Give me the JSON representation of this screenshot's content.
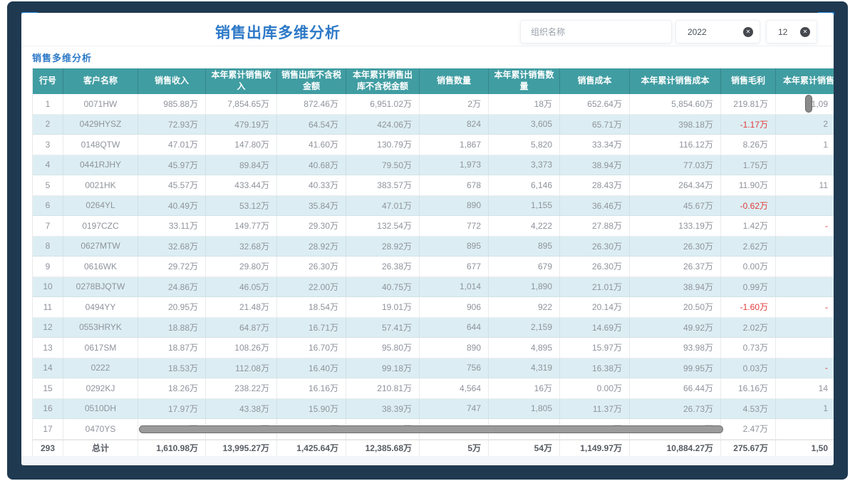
{
  "header": {
    "title": "销售出库多维分析"
  },
  "filters": {
    "org_placeholder": "组织名称",
    "year_value": "2022",
    "month_value": "12",
    "clear_icon": "✕"
  },
  "section": {
    "title": "销售多维分析"
  },
  "table": {
    "columns": [
      "行号",
      "客户名称",
      "销售收入",
      "本年累计销售收入",
      "销售出库不含税金额",
      "本年累计销售出库不含税金额",
      "销售数量",
      "本年累计销售数量",
      "销售成本",
      "本年累计销售成本",
      "销售毛利",
      "本年累计销售毛利"
    ],
    "rows": [
      [
        "1",
        "0071HW",
        "985.88万",
        "7,854.65万",
        "872.46万",
        "6,951.02万",
        "2万",
        "18万",
        "652.64万",
        "5,854.60万",
        "219.81万",
        "1,09"
      ],
      [
        "2",
        "0429HYSZ",
        "72.93万",
        "479.19万",
        "64.54万",
        "424.06万",
        "824",
        "3,605",
        "65.71万",
        "398.18万",
        "-1.17万",
        "2"
      ],
      [
        "3",
        "0148QTW",
        "47.01万",
        "147.80万",
        "41.60万",
        "130.79万",
        "1,867",
        "5,820",
        "33.34万",
        "116.12万",
        "8.26万",
        "1"
      ],
      [
        "4",
        "0441RJHY",
        "45.97万",
        "89.84万",
        "40.68万",
        "79.50万",
        "1,973",
        "3,373",
        "38.94万",
        "77.03万",
        "1.75万",
        ""
      ],
      [
        "5",
        "0021HK",
        "45.57万",
        "433.44万",
        "40.33万",
        "383.57万",
        "678",
        "6,146",
        "28.43万",
        "264.34万",
        "11.90万",
        "11"
      ],
      [
        "6",
        "0264YL",
        "40.49万",
        "53.12万",
        "35.84万",
        "47.01万",
        "890",
        "1,155",
        "36.46万",
        "45.67万",
        "-0.62万",
        ""
      ],
      [
        "7",
        "0197CZC",
        "33.11万",
        "149.77万",
        "29.30万",
        "132.54万",
        "772",
        "4,222",
        "27.88万",
        "133.19万",
        "1.42万",
        "-"
      ],
      [
        "8",
        "0627MTW",
        "32.68万",
        "32.68万",
        "28.92万",
        "28.92万",
        "895",
        "895",
        "26.30万",
        "26.30万",
        "2.62万",
        ""
      ],
      [
        "9",
        "0616WK",
        "29.72万",
        "29.80万",
        "26.30万",
        "26.38万",
        "677",
        "679",
        "26.30万",
        "26.37万",
        "0.00万",
        ""
      ],
      [
        "10",
        "0278BJQTW",
        "24.86万",
        "46.05万",
        "22.00万",
        "40.75万",
        "1,014",
        "1,890",
        "21.01万",
        "38.94万",
        "0.99万",
        ""
      ],
      [
        "11",
        "0494YY",
        "20.95万",
        "21.48万",
        "18.54万",
        "19.01万",
        "906",
        "922",
        "20.14万",
        "20.50万",
        "-1.60万",
        "-"
      ],
      [
        "12",
        "0553HRYK",
        "18.88万",
        "64.87万",
        "16.71万",
        "57.41万",
        "644",
        "2,159",
        "14.69万",
        "49.92万",
        "2.02万",
        ""
      ],
      [
        "13",
        "0617SM",
        "18.87万",
        "108.26万",
        "16.70万",
        "95.80万",
        "890",
        "4,895",
        "15.97万",
        "93.98万",
        "0.73万",
        ""
      ],
      [
        "14",
        "0222",
        "18.53万",
        "112.08万",
        "16.40万",
        "99.18万",
        "756",
        "4,319",
        "16.38万",
        "99.95万",
        "0.03万",
        "-"
      ],
      [
        "15",
        "0292KJ",
        "18.26万",
        "238.22万",
        "16.16万",
        "210.81万",
        "4,564",
        "16万",
        "0.00万",
        "66.44万",
        "16.16万",
        "14"
      ],
      [
        "16",
        "0510DH",
        "17.97万",
        "43.38万",
        "15.90万",
        "38.39万",
        "747",
        "1,805",
        "11.37万",
        "26.73万",
        "4.53万",
        "1"
      ],
      [
        "17",
        "0470YS",
        "16.39万",
        "60.89万",
        "14.50万",
        "53.88万",
        "443",
        "1,530",
        "12.03万",
        "44.45万",
        "2.47万",
        ""
      ]
    ],
    "total_row": [
      "293",
      "总计",
      "1,610.98万",
      "13,995.27万",
      "1,425.64万",
      "12,385.68万",
      "5万",
      "54万",
      "1,149.97万",
      "10,884.27万",
      "275.67万",
      "1,50"
    ]
  }
}
